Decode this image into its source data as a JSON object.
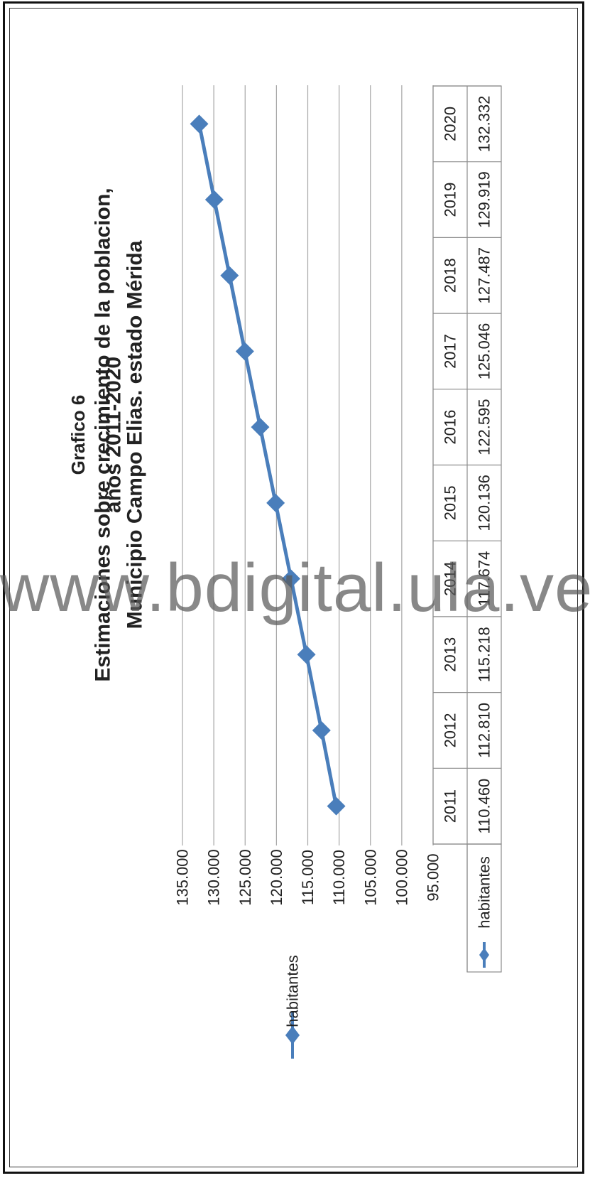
{
  "chart_data": {
    "type": "line",
    "orientation": "rotated 90 degrees counter-clockwise",
    "title": "Grafico 6",
    "subtitle": [
      "Estimaciones sobre crecimiento de  la poblacion,",
      "años 2011-2020",
      "Municipio Campo Elias. estado Mérida"
    ],
    "categories": [
      "2011",
      "2012",
      "2013",
      "2014",
      "2015",
      "2016",
      "2017",
      "2018",
      "2019",
      "2020"
    ],
    "series": [
      {
        "name": "habitantes",
        "values": [
          110460,
          112810,
          115218,
          117674,
          120136,
          122595,
          125046,
          127487,
          129919,
          132332
        ],
        "value_labels": [
          "110.460",
          "112.810",
          "115.218",
          "117.674",
          "120.136",
          "122.595",
          "125.046",
          "127.487",
          "129.919",
          "132.332"
        ]
      }
    ],
    "ylim": [
      95000,
      135000
    ],
    "yticks": [
      95000,
      100000,
      105000,
      110000,
      115000,
      120000,
      125000,
      130000,
      135000
    ],
    "ytick_labels": [
      "95.000",
      "100.000",
      "105.000",
      "110.000",
      "115.000",
      "120.000",
      "125.000",
      "130.000",
      "135.000"
    ],
    "grid": true,
    "legend": {
      "label": "habitantes",
      "placement": "left"
    },
    "data_table": true,
    "colors": {
      "series": "#4a7ebb",
      "grid": "#a6a6a6",
      "text": "#222222"
    }
  },
  "watermark": "www.bdigital.ula.ve"
}
